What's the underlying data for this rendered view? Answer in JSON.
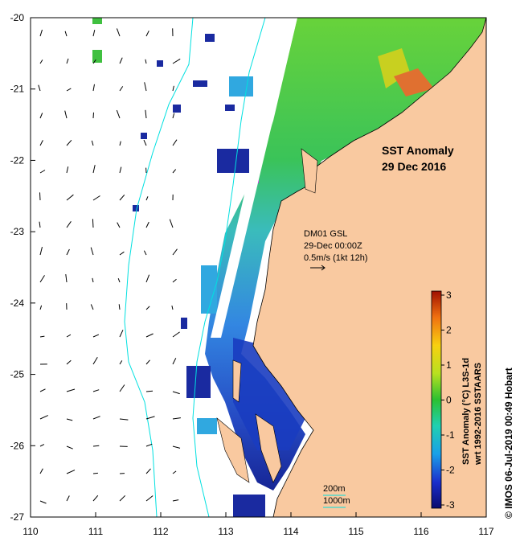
{
  "chart_data": {
    "type": "heatmap",
    "title": "SST Anomaly",
    "subtitle": "29 Dec 2016",
    "x_ticks": [
      "110",
      "111",
      "112",
      "113",
      "114",
      "115",
      "116",
      "117"
    ],
    "y_ticks": [
      "-20",
      "-21",
      "-22",
      "-23",
      "-24",
      "-25",
      "-26",
      "-27"
    ],
    "xlim": [
      110,
      117
    ],
    "ylim": [
      -27,
      -20
    ],
    "current_source": "DM01 GSL",
    "current_time": "29-Dec 00:00Z",
    "current_scale": "0.5m/s (1kt 12h)",
    "isobaths": [
      "200m",
      "1000m"
    ],
    "colorbar": {
      "title_line1": "SST Anomaly (°C) L3S-1d",
      "title_line2": "wrt 1992-2016 SSTAARS",
      "ticks": [
        "3",
        "2",
        "1",
        "0",
        "-1",
        "-2",
        "-3"
      ],
      "range": [
        -3,
        3
      ]
    }
  },
  "copyright": "© IMOS 06-Jul-2019 00:49 Hobart",
  "colors": {
    "land": "#f9c9a0",
    "isobath": "#00e0e0",
    "anomaly_high": "#a00000",
    "anomaly_zero": "#30c030",
    "anomaly_low": "#000060"
  }
}
